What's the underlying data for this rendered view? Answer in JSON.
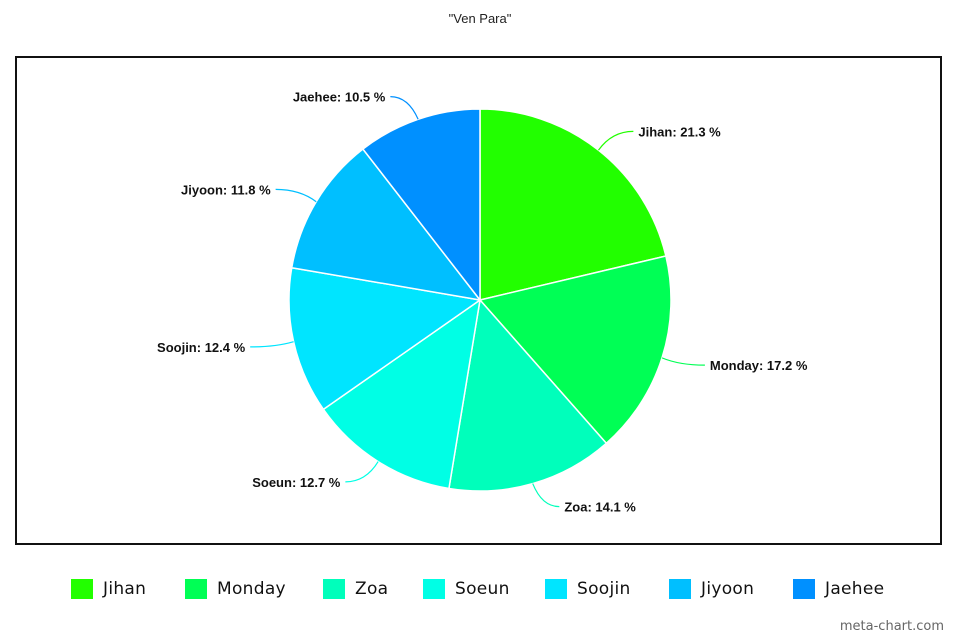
{
  "chart_data": {
    "type": "pie",
    "title": "\"Ven Para\"",
    "start_angle_deg": 0,
    "direction": "clockwise",
    "legend_position": "bottom",
    "slices": [
      {
        "label": "Jihan",
        "value": 21.3,
        "color": "#22ff00",
        "label_text": "Jihan: 21.3 %"
      },
      {
        "label": "Monday",
        "value": 17.2,
        "color": "#00ff55",
        "label_text": "Monday: 17.2 %"
      },
      {
        "label": "Zoa",
        "value": 14.1,
        "color": "#00ffbb",
        "label_text": "Zoa: 14.1 %"
      },
      {
        "label": "Soeun",
        "value": 12.7,
        "color": "#00ffe5",
        "label_text": "Soeun: 12.7 %"
      },
      {
        "label": "Soojin",
        "value": 12.4,
        "color": "#00e5ff",
        "label_text": "Soojin: 12.4 %"
      },
      {
        "label": "Jiyoon",
        "value": 11.8,
        "color": "#00bfff",
        "label_text": "Jiyoon: 11.8 %"
      },
      {
        "label": "Jaehee",
        "value": 10.5,
        "color": "#0090ff",
        "label_text": "Jaehee: 10.5 %"
      }
    ]
  },
  "legend": {
    "items": [
      "Jihan",
      "Monday",
      "Zoa",
      "Soeun",
      "Soojin",
      "Jiyoon",
      "Jaehee"
    ]
  },
  "watermark": "meta-chart.com"
}
